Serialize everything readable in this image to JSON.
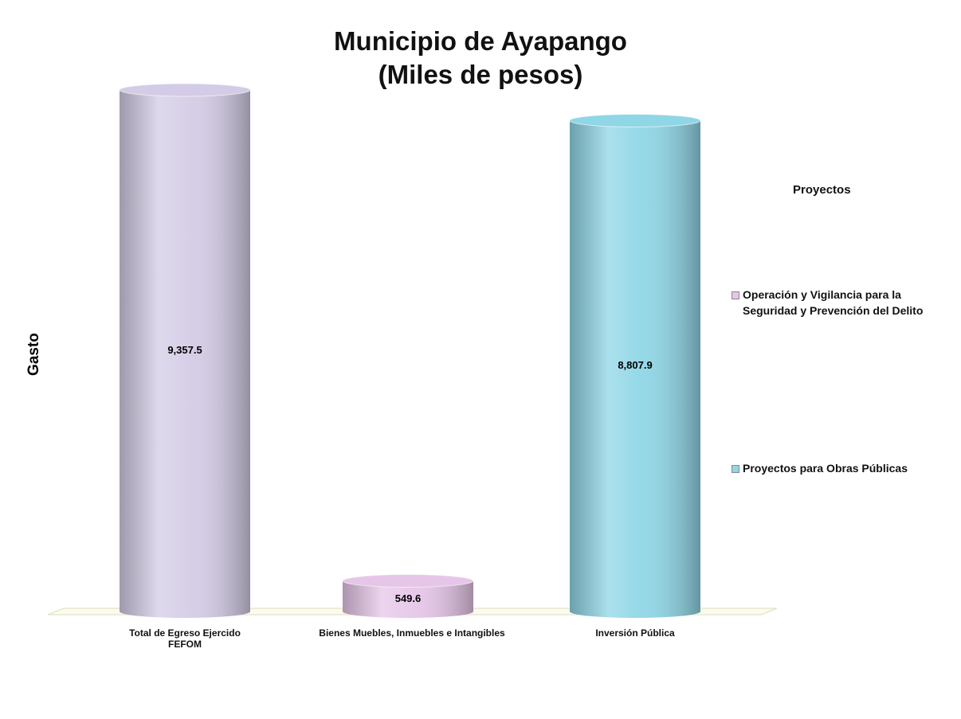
{
  "chart_data": {
    "type": "bar3d",
    "title": "Municipio de Ayapango",
    "subtitle": "(Miles de pesos)",
    "y_label": "Gasto",
    "categories": [
      "Total de Egreso Ejercido FEFOM",
      "Bienes Muebles, Inmuebles e Intangibles",
      "Inversión Pública"
    ],
    "values": [
      9357.5,
      549.6,
      8807.9
    ],
    "value_labels": [
      "9,357.5",
      "549.6",
      "8,807.9"
    ],
    "colors": [
      "#d4cce6",
      "#e6c6e8",
      "#8fd6e6"
    ],
    "legend": {
      "title": "Proyectos",
      "entries": [
        {
          "name": "Operación y Vigilancia para la Seguridad y Prevención del Delito",
          "color": "#e6c6e8"
        },
        {
          "name": "Proyectos para Obras Públicas",
          "color": "#8fd6e6"
        }
      ]
    }
  }
}
